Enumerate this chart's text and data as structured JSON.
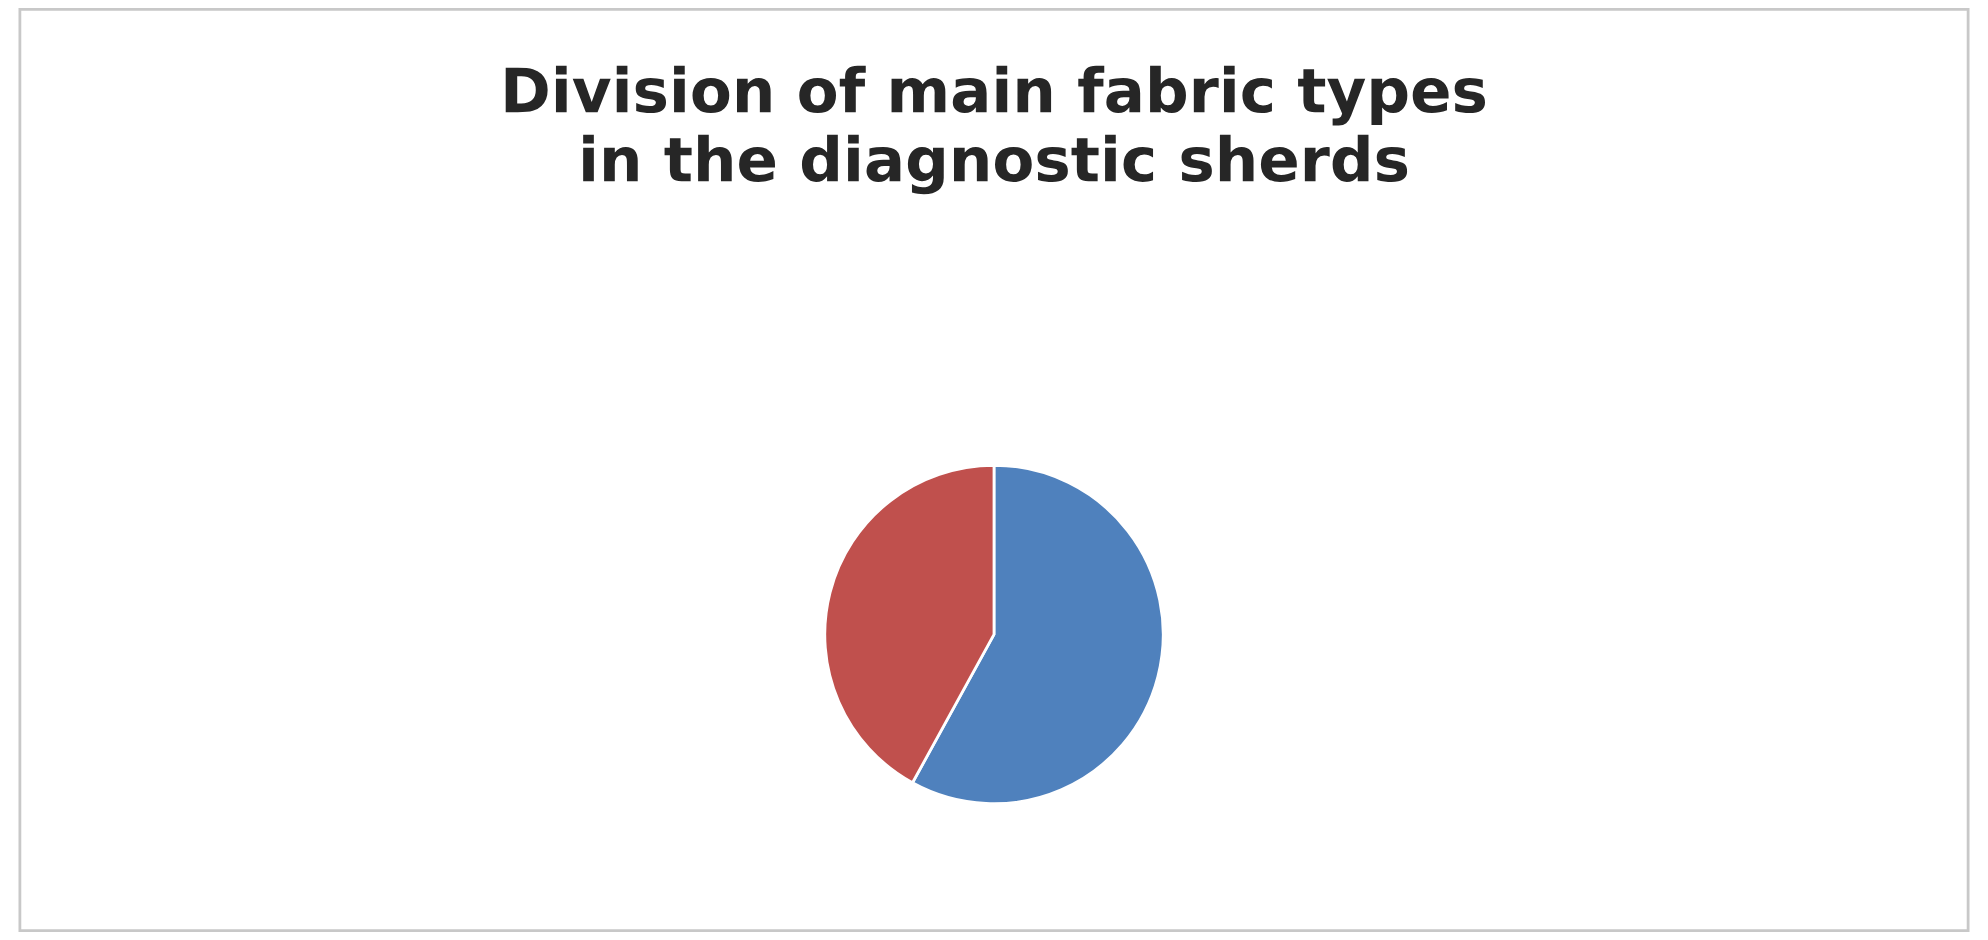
{
  "chart_data": {
    "type": "pie",
    "title": "Division of main fabric types\nin the diagnostic sherds",
    "categories": [
      null,
      null
    ],
    "values": [
      58,
      42
    ],
    "colors": [
      "#4f81bd",
      "#c0504d"
    ],
    "legend": false
  }
}
